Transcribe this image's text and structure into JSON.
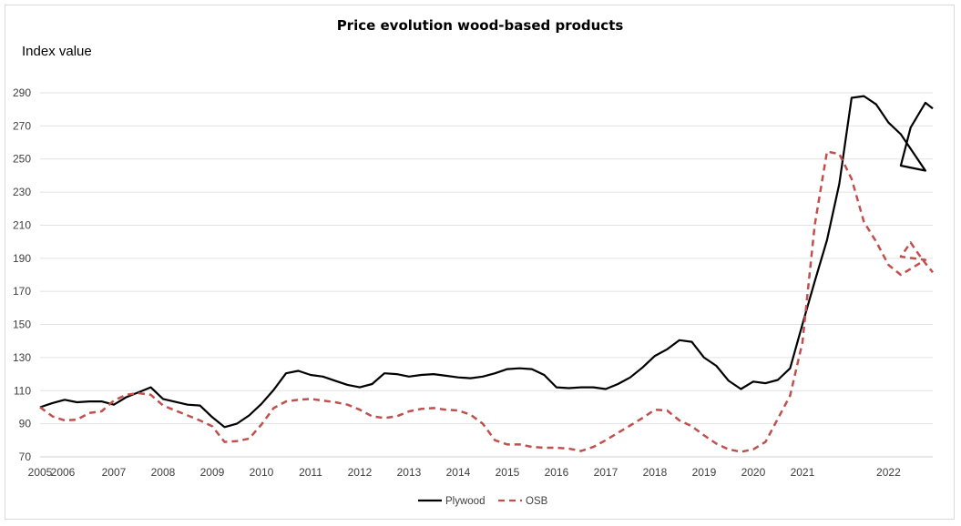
{
  "chart_data": {
    "type": "line",
    "title": "Price evolution wood-based products",
    "ylabel": "Index value",
    "xlabel": "",
    "ylim": [
      70,
      295
    ],
    "yticks": [
      70,
      90,
      110,
      130,
      150,
      170,
      190,
      210,
      230,
      250,
      270,
      290
    ],
    "xlim": [
      2005.0,
      2023.0
    ],
    "xticks": [
      {
        "label": "2005",
        "x": 2005.0
      },
      {
        "label": "2006",
        "x": 2005.5
      },
      {
        "label": "2007",
        "x": 2006.5
      },
      {
        "label": "2008",
        "x": 2007.5
      },
      {
        "label": "2009",
        "x": 2008.5
      },
      {
        "label": "2010",
        "x": 2009.5
      },
      {
        "label": "2011",
        "x": 2010.5
      },
      {
        "label": "2012",
        "x": 2011.5
      },
      {
        "label": "2013",
        "x": 2012.5
      },
      {
        "label": "2014",
        "x": 2013.5
      },
      {
        "label": "2015",
        "x": 2014.5
      },
      {
        "label": "2016",
        "x": 2015.5
      },
      {
        "label": "2017",
        "x": 2016.5
      },
      {
        "label": "2018",
        "x": 2017.5
      },
      {
        "label": "2019",
        "x": 2018.5
      },
      {
        "label": "2020",
        "x": 2019.5
      },
      {
        "label": "2021",
        "x": 2020.5
      },
      {
        "label": "2022",
        "x": 2022.25
      }
    ],
    "grid": true,
    "legend": "bottom-center",
    "x": [
      2005.0,
      2005.25,
      2005.5,
      2005.75,
      2006.0,
      2006.25,
      2006.5,
      2006.75,
      2007.0,
      2007.25,
      2007.5,
      2007.75,
      2008.0,
      2008.25,
      2008.5,
      2008.75,
      2009.0,
      2009.25,
      2009.5,
      2009.75,
      2010.0,
      2010.25,
      2010.5,
      2010.75,
      2011.0,
      2011.25,
      2011.5,
      2011.75,
      2012.0,
      2012.25,
      2012.5,
      2012.75,
      2013.0,
      2013.25,
      2013.5,
      2013.75,
      2014.0,
      2014.25,
      2014.5,
      2014.75,
      2015.0,
      2015.25,
      2015.5,
      2015.75,
      2016.0,
      2016.25,
      2016.5,
      2016.75,
      2017.0,
      2017.25,
      2017.5,
      2017.75,
      2018.0,
      2018.25,
      2018.5,
      2018.75,
      2019.0,
      2019.25,
      2019.5,
      2019.75,
      2020.0,
      2020.25,
      2020.5,
      2020.75,
      2021.0,
      2021.25,
      2021.5,
      2021.75,
      2022.0,
      2022.25,
      2022.5,
      2022.75,
      2023.0
    ],
    "series": [
      {
        "name": "Plywood",
        "color": "#000000",
        "dash": "solid",
        "values": [
          100,
          102.5,
          104.5,
          103,
          103.5,
          103.5,
          101.5,
          106,
          109,
          112,
          105,
          103.2,
          101.5,
          101,
          94,
          88,
          90,
          95,
          102,
          110.5,
          120.5,
          122,
          119.5,
          118.5,
          116,
          113.5,
          112,
          114,
          120.5,
          120,
          118.5,
          119.5,
          120,
          119,
          118,
          117.5,
          118.5,
          120.5,
          123,
          123.5,
          123,
          119.5,
          112,
          111.5,
          112,
          112,
          111,
          114,
          118,
          124,
          131,
          135,
          140.5,
          139.5,
          130,
          125,
          116,
          111,
          115.5,
          114.5,
          116.5,
          123.5,
          150,
          176,
          201,
          235,
          287,
          288,
          283,
          272,
          265,
          254,
          243
        ]
      },
      {
        "name": "OSB",
        "color": "#c0504d",
        "dash": "dashed",
        "values": [
          100,
          94.5,
          92,
          92.5,
          96.5,
          97.5,
          104,
          107.5,
          108.5,
          107.5,
          101,
          98,
          95,
          92,
          88.5,
          79,
          79.5,
          81,
          89.5,
          99.5,
          103.5,
          104.5,
          105,
          104,
          103,
          101.5,
          98.5,
          94.5,
          93.5,
          94.5,
          97.5,
          99,
          99.5,
          98.5,
          98,
          95.5,
          90,
          80,
          77.5,
          77.5,
          76,
          75.5,
          75.5,
          75,
          73.5,
          76,
          80,
          84.5,
          89,
          93.5,
          98.5,
          98,
          92,
          88.5,
          83,
          78,
          74.5,
          73,
          74.5,
          79,
          93,
          107,
          139,
          210,
          254.5,
          253,
          238,
          212,
          200,
          186,
          180,
          184.5,
          189
        ]
      }
    ],
    "extra_points": {
      "Plywood": [
        [
          2022.5,
          246
        ],
        [
          2022.7,
          269
        ],
        [
          2022.85,
          276.5
        ],
        [
          2023.0,
          284
        ],
        [
          2023.15,
          280.5
        ]
      ],
      "OSB": [
        [
          2022.5,
          191
        ],
        [
          2022.7,
          199.5
        ],
        [
          2022.85,
          193
        ],
        [
          2023.0,
          187
        ],
        [
          2023.15,
          181.5
        ]
      ]
    }
  }
}
